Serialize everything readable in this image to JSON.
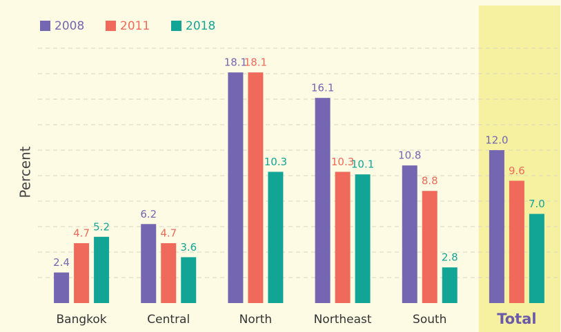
{
  "chart_data": {
    "type": "bar",
    "y_label": "Percent",
    "categories": [
      "Bangkok",
      "Central",
      "North",
      "Northeast",
      "South",
      "Total"
    ],
    "series": [
      {
        "name": "2008",
        "color": "#7466b0",
        "values": [
          2.4,
          6.2,
          18.1,
          16.1,
          10.8,
          12.0
        ],
        "value_labels": [
          "2.4",
          "6.2",
          "18.1",
          "16.1",
          "10.8",
          "12.0"
        ]
      },
      {
        "name": "2011",
        "color": "#ef6a5a",
        "values": [
          4.7,
          4.7,
          18.1,
          10.3,
          8.8,
          9.6
        ],
        "value_labels": [
          "4.7",
          "4.7",
          "18.1",
          "10.3",
          "8.8",
          "9.6"
        ]
      },
      {
        "name": "2018",
        "color": "#12a596",
        "values": [
          5.2,
          3.6,
          10.3,
          10.1,
          2.8,
          7.0
        ],
        "value_labels": [
          "5.2",
          "3.6",
          "10.3",
          "10.1",
          "2.8",
          "7.0"
        ]
      }
    ],
    "ylim": [
      0,
      22
    ],
    "highlight_index": 5,
    "legend": "top-left"
  }
}
